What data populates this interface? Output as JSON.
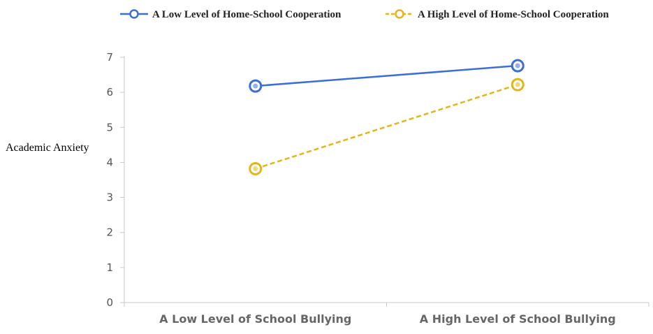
{
  "chart_data": {
    "type": "line",
    "categories": [
      "A Low Level of School Bullying",
      "A High Level of School Bullying"
    ],
    "series": [
      {
        "name": "A Low Level of Home-School Cooperation",
        "values": [
          6.18,
          6.76
        ],
        "color": "#3a6fd8",
        "dash": "solid"
      },
      {
        "name": "A High Level of Home-School Cooperation",
        "values": [
          3.82,
          6.22
        ],
        "color": "#e3b51a",
        "dash": "dashed"
      }
    ],
    "title": "",
    "xlabel": "",
    "ylabel": "Academic Anxiety",
    "ylim": [
      0,
      7
    ],
    "yticks": [
      0,
      1,
      2,
      3,
      4,
      5,
      6,
      7
    ],
    "grid": false,
    "legend_position": "top-right"
  }
}
